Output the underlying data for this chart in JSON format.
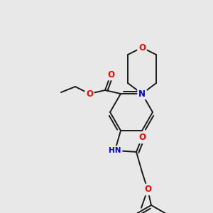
{
  "bg_color": "#e8e8e8",
  "bond_color": "#1a1a1a",
  "atom_colors": {
    "O": "#ff0000",
    "N": "#0000cc",
    "Br": "#cc8800",
    "C": "#1a1a1a",
    "H": "#408080"
  },
  "figsize": [
    3.0,
    3.0
  ],
  "dpi": 100
}
